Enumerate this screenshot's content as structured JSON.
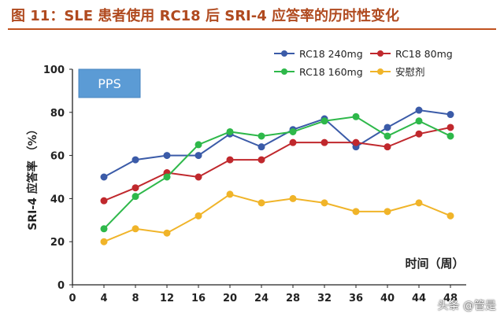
{
  "header": {
    "title": "图 11：SLE 患者使用 RC18 后 SRI-4 应答率的历时性变化"
  },
  "watermark": "头条 @管是",
  "chart_data": {
    "type": "line",
    "title": "图 11：SLE 患者使用 RC18 后 SRI-4 应答率的历时性变化",
    "badge": "PPS",
    "xlabel": "时间（周）",
    "ylabel": "SRI-4 应答率 （%）",
    "x": [
      4,
      8,
      12,
      16,
      20,
      24,
      28,
      32,
      36,
      40,
      44,
      48
    ],
    "xticks": [
      0,
      4,
      8,
      12,
      16,
      20,
      24,
      28,
      32,
      36,
      40,
      44,
      48
    ],
    "xtick_labels": [
      "0",
      "4",
      "8",
      "12",
      "16",
      "20",
      "24",
      "28",
      "32",
      "36",
      "40",
      "44",
      "48"
    ],
    "xlim": [
      0,
      50
    ],
    "ylim": [
      0,
      100
    ],
    "yticks": [
      0,
      20,
      40,
      60,
      80,
      100
    ],
    "grid": false,
    "legend_position": "top-right",
    "series": [
      {
        "name": "RC18 240mg",
        "color": "#3b5ba8",
        "values": [
          50,
          58,
          60,
          60,
          70,
          64,
          72,
          77,
          64,
          73,
          81,
          79
        ]
      },
      {
        "name": "RC18 80mg",
        "color": "#c0282d",
        "values": [
          39,
          45,
          52,
          50,
          58,
          58,
          66,
          66,
          66,
          64,
          70,
          73
        ]
      },
      {
        "name": "RC18 160mg",
        "color": "#2eb84a",
        "values": [
          26,
          41,
          50,
          65,
          71,
          69,
          71,
          76,
          78,
          69,
          76,
          69
        ]
      },
      {
        "name": "安慰剂",
        "color": "#f0b429",
        "values": [
          20,
          26,
          24,
          32,
          42,
          38,
          40,
          38,
          34,
          34,
          38,
          32
        ]
      }
    ]
  }
}
